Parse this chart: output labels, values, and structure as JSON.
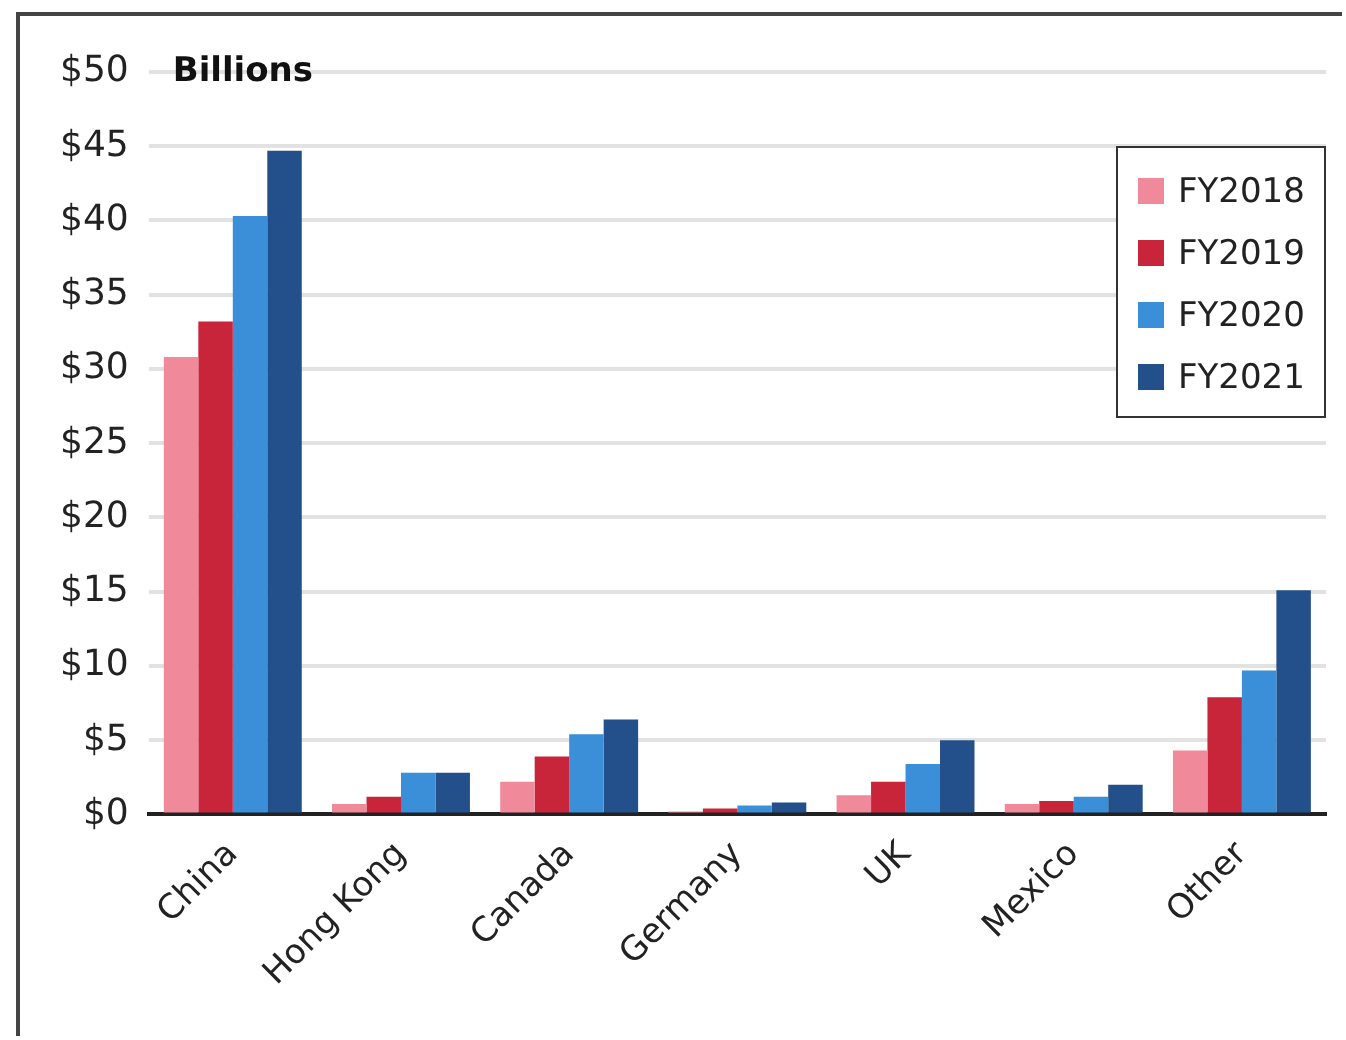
{
  "chart_data": {
    "type": "bar",
    "annotations": [
      "Billions"
    ],
    "categories": [
      "China",
      "Hong Kong",
      "Canada",
      "Germany",
      "UK",
      "Mexico",
      "Other"
    ],
    "series": [
      {
        "name": "FY2018",
        "color": "#f08a9a",
        "values": [
          30.8,
          0.7,
          2.2,
          0.2,
          1.3,
          0.7,
          4.3
        ]
      },
      {
        "name": "FY2019",
        "color": "#c8243a",
        "values": [
          33.2,
          1.2,
          3.9,
          0.4,
          2.2,
          0.9,
          7.9
        ]
      },
      {
        "name": "FY2020",
        "color": "#3a8fd8",
        "values": [
          40.3,
          2.8,
          5.4,
          0.6,
          3.4,
          1.2,
          9.7
        ]
      },
      {
        "name": "FY2021",
        "color": "#23508a",
        "values": [
          44.7,
          2.8,
          6.4,
          0.8,
          5.0,
          2.0,
          15.1
        ]
      }
    ],
    "ylim": [
      0,
      50
    ],
    "yticks": [
      {
        "value": 0,
        "label": "$0"
      },
      {
        "value": 5,
        "label": "$5"
      },
      {
        "value": 10,
        "label": "$10"
      },
      {
        "value": 15,
        "label": "$15"
      },
      {
        "value": 20,
        "label": "$20"
      },
      {
        "value": 25,
        "label": "$25"
      },
      {
        "value": 30,
        "label": "$30"
      },
      {
        "value": 35,
        "label": "$35"
      },
      {
        "value": 40,
        "label": "$40"
      },
      {
        "value": 45,
        "label": "$45"
      },
      {
        "value": 50,
        "label": "$50"
      }
    ],
    "grid": "y",
    "legend": "top right"
  }
}
